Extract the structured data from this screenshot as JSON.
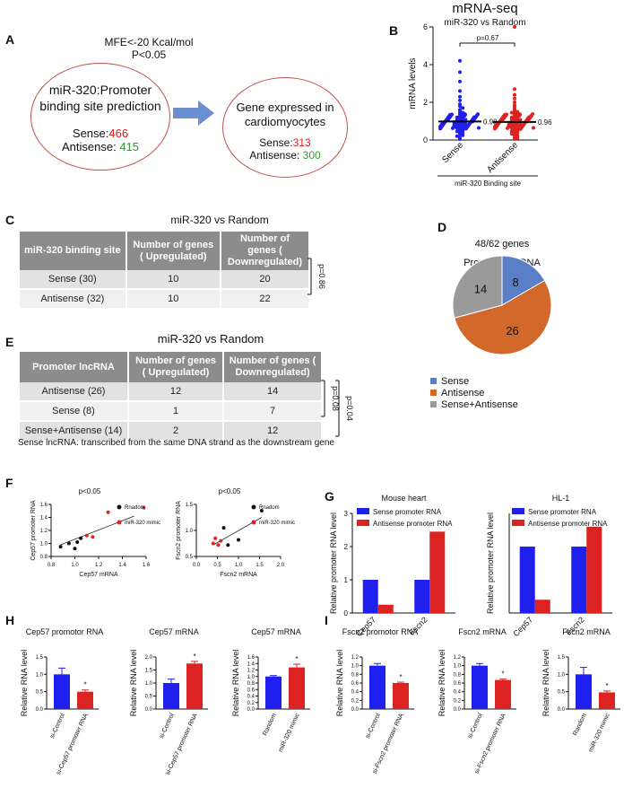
{
  "panel_letters": {
    "A": "A",
    "B": "B",
    "C": "C",
    "D": "D",
    "E": "E",
    "F": "F",
    "G": "G",
    "H": "H",
    "I": "I"
  },
  "panel_a": {
    "mfe_line1": "MFE<-20 Kcal/mol",
    "mfe_line2": "P<0.05",
    "left_title_line1": "miR-320:Promoter",
    "left_title_line2": "binding site prediction",
    "left_sense_label": "Sense:",
    "left_sense_value": "466",
    "left_antisense_label": "Antisense: ",
    "left_antisense_value": "415",
    "right_title_line1": "Gene expressed in",
    "right_title_line2": "cardiomyocytes",
    "right_sense_label": "Sense:",
    "right_sense_value": "313",
    "right_antisense_label": "Antisense: ",
    "right_antisense_value": "300"
  },
  "panel_c": {
    "title": "miR-320 vs Random",
    "headers": [
      "miR-320 binding site",
      "Number of genes ( Upregulated)",
      "Number of genes ( Downregulated)"
    ],
    "rows": [
      [
        "Sense (30)",
        "10",
        "20"
      ],
      [
        "Antisense (32)",
        "10",
        "22"
      ]
    ],
    "pvalue": "p=0.86"
  },
  "panel_e": {
    "title": "miR-320 vs Random",
    "headers": [
      "Promoter lncRNA",
      "Number of genes ( Upregulated)",
      "Number of genes ( Downregulated)"
    ],
    "rows": [
      [
        "Antisense (26)",
        "12",
        "14"
      ],
      [
        "Sense (8)",
        "1",
        "7"
      ],
      [
        "Sense+Antisense (14)",
        "2",
        "12"
      ]
    ],
    "pvalue1": "p=0.08",
    "pvalue2": "p=0.04",
    "footnote": "Sense lncRNA: transcribed from the same DNA strand as the downstream gene"
  },
  "colors": {
    "blue": "#2020ee",
    "red": "#dd2222",
    "pie_blue": "#5b7fc6",
    "pie_orange": "#d2692b",
    "pie_gray": "#9a9a9a",
    "ellipse": "#c0504d",
    "arrow": "#6b8fd0"
  },
  "chart_data": [
    {
      "id": "B",
      "type": "scatter",
      "title": "mRNA-seq",
      "subtitle": "miR-320 vs Random",
      "ylabel": "mRNA levels",
      "ylim": [
        0,
        6
      ],
      "yticks": [
        "0",
        "2",
        "4",
        "6"
      ],
      "categories": [
        "Sense",
        "Antisense"
      ],
      "means": [
        0.98,
        0.96
      ],
      "mean_labels": [
        "0.98",
        "0.96"
      ],
      "pvalue": "p=0.67",
      "group_label": "miR-320 Binding site",
      "series": [
        {
          "name": "Sense",
          "values": [
            4.2,
            3.6,
            3.1,
            2.6,
            2.3,
            2.1,
            1.9,
            1.8,
            1.7,
            1.6,
            1.5,
            1.45,
            1.4,
            1.35,
            1.3,
            1.25,
            1.2,
            1.18,
            1.15,
            1.1,
            1.08,
            1.05,
            1.02,
            1.0,
            0.98,
            0.95,
            0.92,
            0.9,
            0.88,
            0.85,
            0.82,
            0.8,
            0.78,
            0.75,
            0.72,
            0.7,
            0.68,
            0.65,
            0.62,
            0.6,
            0.55,
            0.5,
            0.45,
            0.4,
            0.35,
            0.3,
            0.25,
            0.2,
            0.12,
            0.05
          ]
        },
        {
          "name": "Antisense",
          "values": [
            6.0,
            2.7,
            2.4,
            2.2,
            2.0,
            1.85,
            1.75,
            1.65,
            1.55,
            1.5,
            1.45,
            1.4,
            1.35,
            1.3,
            1.25,
            1.2,
            1.17,
            1.13,
            1.1,
            1.07,
            1.04,
            1.01,
            0.99,
            0.96,
            0.93,
            0.9,
            0.88,
            0.85,
            0.82,
            0.8,
            0.77,
            0.74,
            0.71,
            0.68,
            0.65,
            0.62,
            0.58,
            0.54,
            0.5,
            0.46,
            0.42,
            0.38,
            0.33,
            0.28,
            0.22,
            0.16,
            0.1,
            0.05
          ]
        }
      ]
    },
    {
      "id": "D",
      "type": "pie",
      "title_line1": "48/62 genes",
      "title_line2": "Promoter lncRNA",
      "categories": [
        "Sense",
        "Antisense",
        "Sense+Antisense"
      ],
      "values": [
        8,
        26,
        14
      ],
      "labels": [
        "8",
        "26",
        "14"
      ]
    },
    {
      "id": "F1",
      "type": "scatter",
      "title": "p<0.05",
      "xlabel": "Cep57 mRNA",
      "ylabel": "Cep57 promoter RNA",
      "xlim": [
        0.8,
        1.6
      ],
      "ylim": [
        0.8,
        1.6
      ],
      "xticks": [
        "0.8",
        "1.0",
        "1.2",
        "1.4",
        "1.6"
      ],
      "yticks": [
        "0.8",
        "1.0",
        "1.2",
        "1.4",
        "1.6"
      ],
      "legend": [
        "Rnadom",
        "miR-320 mimic"
      ],
      "series": [
        {
          "name": "Rnadom",
          "x": [
            0.88,
            0.95,
            1.0,
            1.02,
            1.05
          ],
          "y": [
            0.95,
            1.0,
            0.92,
            1.02,
            1.08
          ]
        },
        {
          "name": "miR-320 mimic",
          "x": [
            1.1,
            1.15,
            1.28,
            1.58
          ],
          "y": [
            1.12,
            1.1,
            1.48,
            1.55
          ]
        }
      ],
      "fit": {
        "x": [
          0.88,
          1.5
        ],
        "y": [
          0.98,
          1.42
        ]
      }
    },
    {
      "id": "F2",
      "type": "scatter",
      "title": "p<0.05",
      "xlabel": "Fscn2 mRNA",
      "ylabel": "Fscn2 promoter RNA",
      "xlim": [
        0,
        2
      ],
      "ylim": [
        0.5,
        1.5
      ],
      "xticks": [
        "0.0",
        "0.5",
        "1.0",
        "1.5",
        "2.0"
      ],
      "yticks": [
        "0.5",
        "1.0",
        "1.5"
      ],
      "legend": [
        "Rnadom",
        "miR-320 mimic"
      ],
      "series": [
        {
          "name": "Rnadom",
          "x": [
            0.65,
            0.75,
            1.0,
            1.55
          ],
          "y": [
            1.05,
            0.72,
            0.82,
            1.38
          ]
        },
        {
          "name": "miR-320 mimic",
          "x": [
            0.4,
            0.45,
            0.52,
            0.58
          ],
          "y": [
            0.75,
            0.85,
            0.72,
            0.8
          ]
        }
      ],
      "fit": {
        "x": [
          0.4,
          1.55
        ],
        "y": [
          0.72,
          1.25
        ]
      }
    },
    {
      "id": "G1",
      "type": "bar",
      "title": "Mouse heart",
      "ylabel": "Relative promoter RNA level",
      "ylim": [
        0,
        3
      ],
      "yticks": [
        "0",
        "1",
        "2",
        "3"
      ],
      "categories": [
        "Cep57",
        "Fscn2"
      ],
      "series": [
        {
          "name": "Sense promoter RNA",
          "values": [
            1.0,
            1.0
          ]
        },
        {
          "name": "Antisense promoter RNA",
          "values": [
            0.25,
            2.45
          ]
        }
      ]
    },
    {
      "id": "G2",
      "type": "bar",
      "title": "HL-1",
      "ylabel": "Relative promoter RNA level",
      "ylim": [
        0,
        1.5
      ],
      "categories": [
        "Cep57",
        "Fscn2"
      ],
      "series": [
        {
          "name": "Sense promoter RNA",
          "values": [
            1.0,
            1.0
          ]
        },
        {
          "name": "Antisense promoter RNA",
          "values": [
            0.2,
            1.3
          ]
        }
      ]
    },
    {
      "id": "H1",
      "type": "bar",
      "title": "Cep57 promotor RNA",
      "ylabel": "Relative RNA level",
      "ylim": [
        0,
        1.5
      ],
      "yticks": [
        "0.0",
        "0.5",
        "1.0",
        "1.5"
      ],
      "categories": [
        "si-Control",
        "si-Cep57 promoter RNA"
      ],
      "values": [
        1.0,
        0.5
      ],
      "errors": [
        0.18,
        0.05
      ],
      "star": "*"
    },
    {
      "id": "H2",
      "type": "bar",
      "title": "Cep57 mRNA",
      "ylabel": "Relative RNA level",
      "ylim": [
        0,
        2
      ],
      "yticks": [
        "0.0",
        "0.5",
        "1.0",
        "1.5",
        "2.0"
      ],
      "categories": [
        "si-Control",
        "si-Cep57 promoter RNA"
      ],
      "values": [
        1.0,
        1.75
      ],
      "errors": [
        0.15,
        0.08
      ],
      "star": "*"
    },
    {
      "id": "H3",
      "type": "bar",
      "title": "Cep57 mRNA",
      "ylabel": "Relative RNA level",
      "ylim": [
        0,
        1.6
      ],
      "yticks": [
        "0.0",
        "0.2",
        "0.4",
        "0.6",
        "0.8",
        "1.0",
        "1.2",
        "1.4",
        "1.6"
      ],
      "categories": [
        "Random",
        "miR-320 mimic"
      ],
      "values": [
        1.0,
        1.28
      ],
      "errors": [
        0.03,
        0.1
      ],
      "star": "*"
    },
    {
      "id": "I1",
      "type": "bar",
      "title": "Fscn2 promotor RNA",
      "ylabel": "Relative RNA level",
      "ylim": [
        0,
        1.2
      ],
      "yticks": [
        "0.0",
        "0.2",
        "0.4",
        "0.6",
        "0.8",
        "1.0",
        "1.2"
      ],
      "categories": [
        "si-Control",
        "si-Fscn2 promoter RNA"
      ],
      "values": [
        1.0,
        0.6
      ],
      "errors": [
        0.05,
        0.02
      ],
      "star": "*"
    },
    {
      "id": "I2",
      "type": "bar",
      "title": "Fscn2 mRNA",
      "ylabel": "Relative RNA level",
      "ylim": [
        0,
        1.2
      ],
      "yticks": [
        "0.0",
        "0.2",
        "0.4",
        "0.6",
        "0.8",
        "1.0",
        "1.2"
      ],
      "categories": [
        "si-Control",
        "si-Fscn2 promoter RNA"
      ],
      "values": [
        1.0,
        0.67
      ],
      "errors": [
        0.05,
        0.02
      ],
      "star": "*"
    },
    {
      "id": "I3",
      "type": "bar",
      "title": "Fscn2 mRNA",
      "ylabel": "Relative RNA level",
      "ylim": [
        0,
        1.5
      ],
      "yticks": [
        "0.0",
        "0.5",
        "1.0",
        "1.5"
      ],
      "categories": [
        "Random",
        "miR-320 mimic"
      ],
      "values": [
        1.0,
        0.48
      ],
      "errors": [
        0.2,
        0.04
      ],
      "star": "*"
    }
  ]
}
